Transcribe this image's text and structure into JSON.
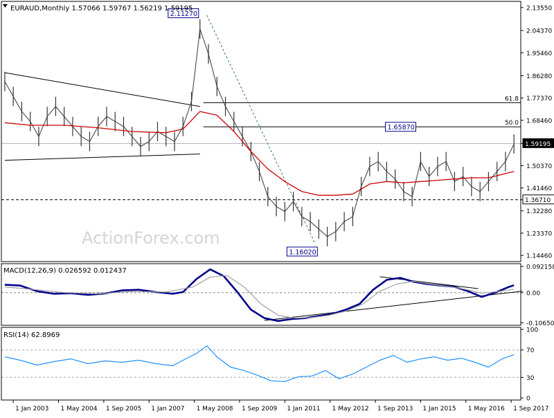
{
  "chart_data": {
    "type": "line",
    "panels": [
      {
        "id": "price",
        "title": "EURAUD,Monthly  1.57066 1.59767 1.56219 1.59195",
        "title_color": "#000000",
        "y_ticks": [
          "2.13550",
          "2.04370",
          "1.95460",
          "1.86280",
          "1.77370",
          "1.68460",
          "1.59195",
          "1.50370",
          "1.41460",
          "1.36710",
          "1.32280",
          "1.23370",
          "1.14460"
        ],
        "y_tick_values": [
          2.1355,
          2.0437,
          1.9546,
          1.8628,
          1.7737,
          1.6846,
          1.59195,
          1.5037,
          1.4146,
          1.3671,
          1.3228,
          1.2337,
          1.1446
        ],
        "ylim": [
          1.12,
          2.16
        ],
        "highlight_labels": [
          {
            "text": "1.59195",
            "value": 1.59195,
            "style": "black"
          },
          {
            "text": "1.36710",
            "value": 1.3671,
            "style": "white"
          }
        ],
        "annotations": [
          {
            "text": "2.11270",
            "x": 2008.5,
            "y": 2.1127
          },
          {
            "text": "1.65870",
            "x": 2014.9,
            "y": 1.6587
          },
          {
            "text": "1.16020",
            "x": 2012.0,
            "y": 1.1602
          }
        ],
        "fib_levels": [
          {
            "label": "61.8",
            "value": 1.755
          },
          {
            "label": "50.0",
            "value": 1.6587
          }
        ],
        "horizontal_lines": [
          {
            "value": 1.3671,
            "style": "dashed"
          },
          {
            "value": 1.59195,
            "style": "gray"
          }
        ],
        "trendlines": [
          {
            "x1": 2002.75,
            "y1": 1.875,
            "x2": 2008.5,
            "y2": 1.74,
            "style": "solid"
          },
          {
            "x1": 2002.75,
            "y1": 1.525,
            "x2": 2008.5,
            "y2": 1.55,
            "style": "solid"
          },
          {
            "x1": 2008.7,
            "y1": 2.105,
            "x2": 2011.9,
            "y2": 1.19,
            "style": "dashed-green"
          }
        ],
        "watermark": "ActionForex.com",
        "series": [
          {
            "kind": "ohlc_close",
            "color": "#555555",
            "x": [
              2002.75,
              2003.0,
              2003.25,
              2003.5,
              2003.75,
              2004.0,
              2004.25,
              2004.5,
              2004.75,
              2005.0,
              2005.25,
              2005.5,
              2005.75,
              2006.0,
              2006.25,
              2006.5,
              2006.75,
              2007.0,
              2007.25,
              2007.5,
              2007.75,
              2008.0,
              2008.25,
              2008.5,
              2008.75,
              2009.0,
              2009.25,
              2009.5,
              2009.75,
              2010.0,
              2010.25,
              2010.5,
              2010.75,
              2011.0,
              2011.25,
              2011.5,
              2011.75,
              2012.0,
              2012.25,
              2012.5,
              2012.75,
              2013.0,
              2013.25,
              2013.5,
              2013.75,
              2014.0,
              2014.25,
              2014.5,
              2014.75,
              2015.0,
              2015.25,
              2015.5,
              2015.75,
              2016.0,
              2016.25,
              2016.5,
              2016.75,
              2017.0,
              2017.25,
              2017.5,
              2017.75
            ],
            "values": [
              1.84,
              1.78,
              1.72,
              1.68,
              1.62,
              1.7,
              1.74,
              1.7,
              1.66,
              1.62,
              1.6,
              1.66,
              1.7,
              1.68,
              1.66,
              1.62,
              1.58,
              1.6,
              1.64,
              1.62,
              1.6,
              1.66,
              1.76,
              2.05,
              1.95,
              1.82,
              1.74,
              1.68,
              1.62,
              1.56,
              1.48,
              1.38,
              1.34,
              1.32,
              1.36,
              1.3,
              1.28,
              1.25,
              1.22,
              1.24,
              1.28,
              1.3,
              1.42,
              1.5,
              1.52,
              1.48,
              1.45,
              1.4,
              1.38,
              1.52,
              1.46,
              1.5,
              1.52,
              1.44,
              1.46,
              1.42,
              1.4,
              1.44,
              1.48,
              1.52,
              1.59
            ]
          },
          {
            "kind": "sma",
            "color": "#cc0000",
            "x": [
              2002.75,
              2003.5,
              2004.5,
              2005.5,
              2006.5,
              2007.5,
              2008.0,
              2008.5,
              2009.0,
              2009.5,
              2010.0,
              2010.5,
              2011.0,
              2011.5,
              2012.0,
              2012.5,
              2013.0,
              2013.5,
              2014.0,
              2014.5,
              2015.0,
              2015.5,
              2016.0,
              2016.5,
              2017.0,
              2017.75
            ],
            "values": [
              1.675,
              1.665,
              1.665,
              1.655,
              1.64,
              1.635,
              1.65,
              1.72,
              1.705,
              1.64,
              1.56,
              1.49,
              1.44,
              1.4,
              1.385,
              1.385,
              1.39,
              1.43,
              1.44,
              1.435,
              1.44,
              1.445,
              1.45,
              1.455,
              1.455,
              1.48
            ]
          }
        ]
      },
      {
        "id": "macd",
        "title": "MACD(12,26,9) 0.026592 0.012437",
        "y_ticks": [
          "0.092158",
          "0.00",
          "-0.106503"
        ],
        "y_tick_values": [
          0.092158,
          0.0,
          -0.106503
        ],
        "ylim": [
          -0.115,
          0.102
        ],
        "trendlines": [
          {
            "x1": 2010.4,
            "y1": -0.098,
            "x2": 2018.0,
            "y2": 0.005
          },
          {
            "x1": 2013.8,
            "y1": 0.056,
            "x2": 2016.7,
            "y2": 0.014
          }
        ],
        "series": [
          {
            "name": "MACD",
            "color": "#00008b",
            "x": [
              2002.75,
              2003.2,
              2003.7,
              2004.2,
              2004.7,
              2005.2,
              2005.7,
              2006.2,
              2006.7,
              2007.2,
              2007.7,
              2008.0,
              2008.4,
              2008.8,
              2009.2,
              2009.6,
              2010.0,
              2010.4,
              2010.8,
              2011.2,
              2011.6,
              2012.0,
              2012.4,
              2012.8,
              2013.2,
              2013.6,
              2014.0,
              2014.4,
              2014.8,
              2015.2,
              2015.6,
              2016.0,
              2016.4,
              2016.8,
              2017.2,
              2017.6,
              2017.75
            ],
            "values": [
              0.028,
              0.025,
              0.005,
              -0.004,
              -0.002,
              -0.008,
              -0.003,
              0.008,
              0.01,
              0.002,
              -0.004,
              0.002,
              0.048,
              0.082,
              0.058,
              0.002,
              -0.06,
              -0.09,
              -0.1,
              -0.093,
              -0.09,
              -0.082,
              -0.075,
              -0.06,
              -0.04,
              0.01,
              0.045,
              0.052,
              0.038,
              0.03,
              0.025,
              0.02,
              0.005,
              -0.015,
              0.0,
              0.02,
              0.026
            ]
          },
          {
            "name": "Signal",
            "color": "#a0a0a0",
            "x": [
              2002.75,
              2003.5,
              2004.5,
              2005.5,
              2006.5,
              2007.5,
              2008.3,
              2008.8,
              2009.3,
              2009.8,
              2010.3,
              2010.8,
              2011.3,
              2011.8,
              2012.3,
              2012.8,
              2013.3,
              2013.8,
              2014.3,
              2014.8,
              2015.3,
              2015.8,
              2016.3,
              2016.8,
              2017.3,
              2017.75
            ],
            "values": [
              0.02,
              0.012,
              0.0,
              -0.004,
              0.004,
              0.002,
              0.02,
              0.055,
              0.06,
              0.02,
              -0.04,
              -0.08,
              -0.09,
              -0.088,
              -0.08,
              -0.065,
              -0.04,
              0.005,
              0.03,
              0.04,
              0.03,
              0.022,
              0.012,
              -0.002,
              0.004,
              0.012
            ]
          }
        ]
      },
      {
        "id": "rsi",
        "title": "RSI(14) 62.8969",
        "y_ticks": [
          "100",
          "70",
          "30",
          "0"
        ],
        "y_tick_values": [
          100,
          70,
          30,
          0
        ],
        "ylim": [
          -3,
          103
        ],
        "levels": [
          70,
          30
        ],
        "series": [
          {
            "name": "RSI",
            "color": "#1e90ff",
            "x": [
              2002.75,
              2003.2,
              2003.7,
              2004.2,
              2004.7,
              2005.2,
              2005.7,
              2006.2,
              2006.7,
              2007.2,
              2007.7,
              2008.0,
              2008.4,
              2008.7,
              2009.0,
              2009.4,
              2009.8,
              2010.2,
              2010.6,
              2011.0,
              2011.4,
              2011.8,
              2012.2,
              2012.6,
              2013.0,
              2013.4,
              2013.8,
              2014.2,
              2014.6,
              2015.0,
              2015.4,
              2015.8,
              2016.2,
              2016.6,
              2017.0,
              2017.4,
              2017.75
            ],
            "values": [
              60,
              55,
              48,
              53,
              57,
              50,
              54,
              52,
              55,
              50,
              47,
              55,
              65,
              76,
              60,
              45,
              40,
              33,
              25,
              24,
              31,
              32,
              40,
              28,
              35,
              45,
              55,
              62,
              52,
              57,
              60,
              55,
              58,
              52,
              45,
              57,
              63
            ]
          }
        ]
      }
    ],
    "x_axis": {
      "type": "time",
      "xlim": [
        2002.65,
        2017.95
      ],
      "tick_labels": [
        "1 Jan 2003",
        "1 May 2004",
        "1 Sep 2005",
        "1 Jan 2007",
        "1 May 2008",
        "1 Sep 2009",
        "1 Jan 2011",
        "1 May 2012",
        "1 Sep 2013",
        "1 Jan 2015",
        "1 May 2016",
        "1 Sep 2017"
      ],
      "tick_values": [
        2003.0,
        2004.333,
        2005.667,
        2007.0,
        2008.333,
        2009.667,
        2011.0,
        2012.333,
        2013.667,
        2015.0,
        2016.333,
        2017.667
      ]
    }
  }
}
